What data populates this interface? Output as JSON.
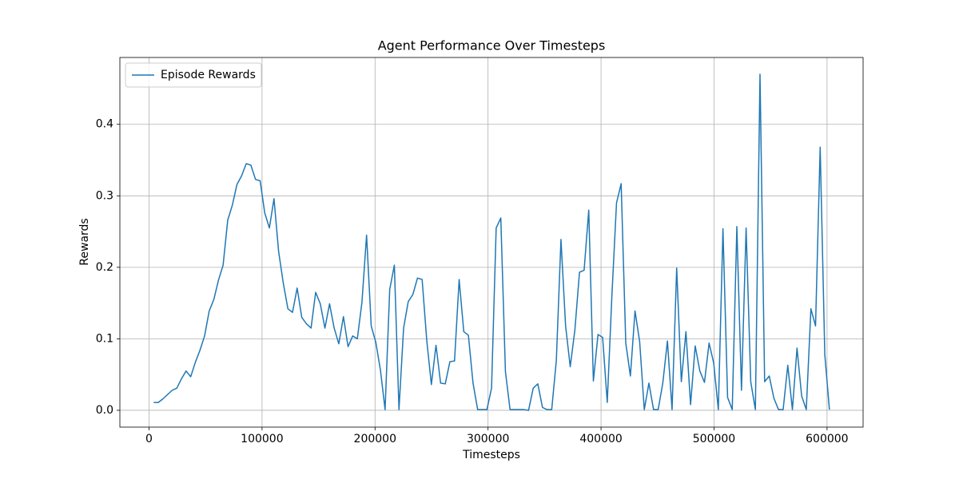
{
  "chart_data": {
    "type": "line",
    "title": "Agent Performance Over Timesteps",
    "xlabel": "Timesteps",
    "ylabel": "Rewards",
    "x": [
      4096,
      8192,
      12288,
      16384,
      20480,
      24576,
      28672,
      32768,
      36864,
      40960,
      45056,
      49152,
      53248,
      57344,
      61440,
      65536,
      69632,
      73728,
      77824,
      81920,
      86016,
      90112,
      94208,
      98304,
      102400,
      106496,
      110592,
      114688,
      118784,
      122880,
      126976,
      131072,
      135168,
      139264,
      143360,
      147456,
      151552,
      155648,
      159744,
      163840,
      167936,
      172032,
      176128,
      180224,
      184320,
      188416,
      192512,
      196608,
      200704,
      204800,
      208896,
      212992,
      217088,
      221184,
      225280,
      229376,
      233472,
      237568,
      241664,
      245760,
      249856,
      253952,
      258048,
      262144,
      266240,
      270336,
      274432,
      278528,
      282624,
      286720,
      290816,
      294912,
      299008,
      303104,
      307200,
      311296,
      315392,
      319488,
      323584,
      327680,
      331776,
      335872,
      339968,
      344064,
      348160,
      352256,
      356352,
      360448,
      364544,
      368640,
      372736,
      376832,
      380928,
      385024,
      389120,
      393216,
      397312,
      401408,
      405504,
      409600,
      413696,
      417792,
      421888,
      425984,
      430080,
      434176,
      438272,
      442368,
      446464,
      450560,
      454656,
      458752,
      462848,
      466944,
      471040,
      475136,
      479232,
      483328,
      487424,
      491520,
      495616,
      499712,
      503808,
      507904,
      512000,
      516096,
      520192,
      524288,
      528384,
      532480,
      536576,
      540672,
      544768,
      548864,
      552960,
      557056,
      561152,
      565248,
      569344,
      573440,
      577536,
      581632,
      585728,
      589824,
      593920,
      598016,
      602112
    ],
    "series": [
      {
        "name": "Episode Rewards",
        "color": "#1f77b4",
        "values": [
          0.011,
          0.011,
          0.016,
          0.022,
          0.028,
          0.031,
          0.044,
          0.055,
          0.047,
          0.067,
          0.084,
          0.104,
          0.139,
          0.155,
          0.182,
          0.203,
          0.266,
          0.287,
          0.316,
          0.328,
          0.345,
          0.343,
          0.323,
          0.321,
          0.276,
          0.255,
          0.296,
          0.222,
          0.178,
          0.142,
          0.137,
          0.171,
          0.13,
          0.121,
          0.115,
          0.165,
          0.149,
          0.115,
          0.149,
          0.115,
          0.093,
          0.131,
          0.089,
          0.104,
          0.1,
          0.151,
          0.245,
          0.118,
          0.095,
          0.056,
          0.001,
          0.169,
          0.203,
          0.001,
          0.115,
          0.152,
          0.162,
          0.185,
          0.183,
          0.098,
          0.036,
          0.091,
          0.038,
          0.037,
          0.068,
          0.069,
          0.183,
          0.11,
          0.105,
          0.038,
          0.001,
          0.001,
          0.001,
          0.031,
          0.255,
          0.269,
          0.054,
          0.001,
          0.001,
          0.001,
          0.001,
          0.0,
          0.031,
          0.037,
          0.004,
          0.001,
          0.001,
          0.07,
          0.239,
          0.118,
          0.061,
          0.112,
          0.193,
          0.196,
          0.28,
          0.041,
          0.106,
          0.102,
          0.011,
          0.16,
          0.29,
          0.317,
          0.094,
          0.048,
          0.139,
          0.096,
          0.001,
          0.038,
          0.001,
          0.001,
          0.038,
          0.097,
          0.001,
          0.199,
          0.04,
          0.11,
          0.008,
          0.09,
          0.055,
          0.039,
          0.094,
          0.066,
          0.001,
          0.254,
          0.018,
          0.001,
          0.257,
          0.028,
          0.255,
          0.04,
          0.001,
          0.47,
          0.04,
          0.048,
          0.017,
          0.001,
          0.001,
          0.063,
          0.001,
          0.087,
          0.02,
          0.001,
          0.142,
          0.118,
          0.368,
          0.078,
          0.001
        ]
      }
    ],
    "xlim": [
      -25805,
      631913
    ],
    "ylim": [
      -0.0235,
      0.4935
    ],
    "xticks": [
      0,
      100000,
      200000,
      300000,
      400000,
      500000,
      600000
    ],
    "yticks": [
      {
        "value": 0,
        "label": "0.0"
      },
      0.1,
      0.2,
      0.3,
      0.4
    ],
    "grid": true,
    "legend": "upper left"
  }
}
